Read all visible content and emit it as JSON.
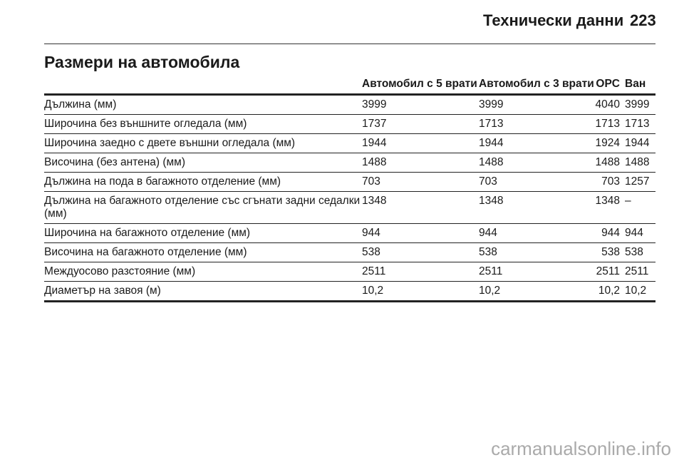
{
  "header": {
    "section": "Технически данни",
    "page_number": "223"
  },
  "title": "Размери на автомобила",
  "table": {
    "columns": [
      "",
      "Автомобил с 5 врати",
      "Автомобил с 3 врати",
      "OPC",
      "Ван"
    ],
    "rows": [
      [
        "Дължина (мм)",
        "3999",
        "3999",
        "4040",
        "3999"
      ],
      [
        "Широчина без външните огледала (мм)",
        "1737",
        "1713",
        "1713",
        "1713"
      ],
      [
        "Широчина заедно с двете външни огледала (мм)",
        "1944",
        "1944",
        "1924",
        "1944"
      ],
      [
        "Височина (без антена) (мм)",
        "1488",
        "1488",
        "1488",
        "1488"
      ],
      [
        "Дължина на пода в багажното отделение (мм)",
        "703",
        "703",
        "703",
        "1257"
      ],
      [
        "Дължина на багажното отделение със сгънати задни седалки (мм)",
        "1348",
        "1348",
        "1348",
        "–"
      ],
      [
        "Широчина на багажното отделение (мм)",
        "944",
        "944",
        "944",
        "944"
      ],
      [
        "Височина на багажното отделение (мм)",
        "538",
        "538",
        "538",
        "538"
      ],
      [
        "Междуосово разстояние (мм)",
        "2511",
        "2511",
        "2511",
        "2511"
      ],
      [
        "Диаметър на завоя (м)",
        "10,2",
        "10,2",
        "10,2",
        "10,2"
      ]
    ]
  },
  "watermark": "carmanualsonline.info"
}
